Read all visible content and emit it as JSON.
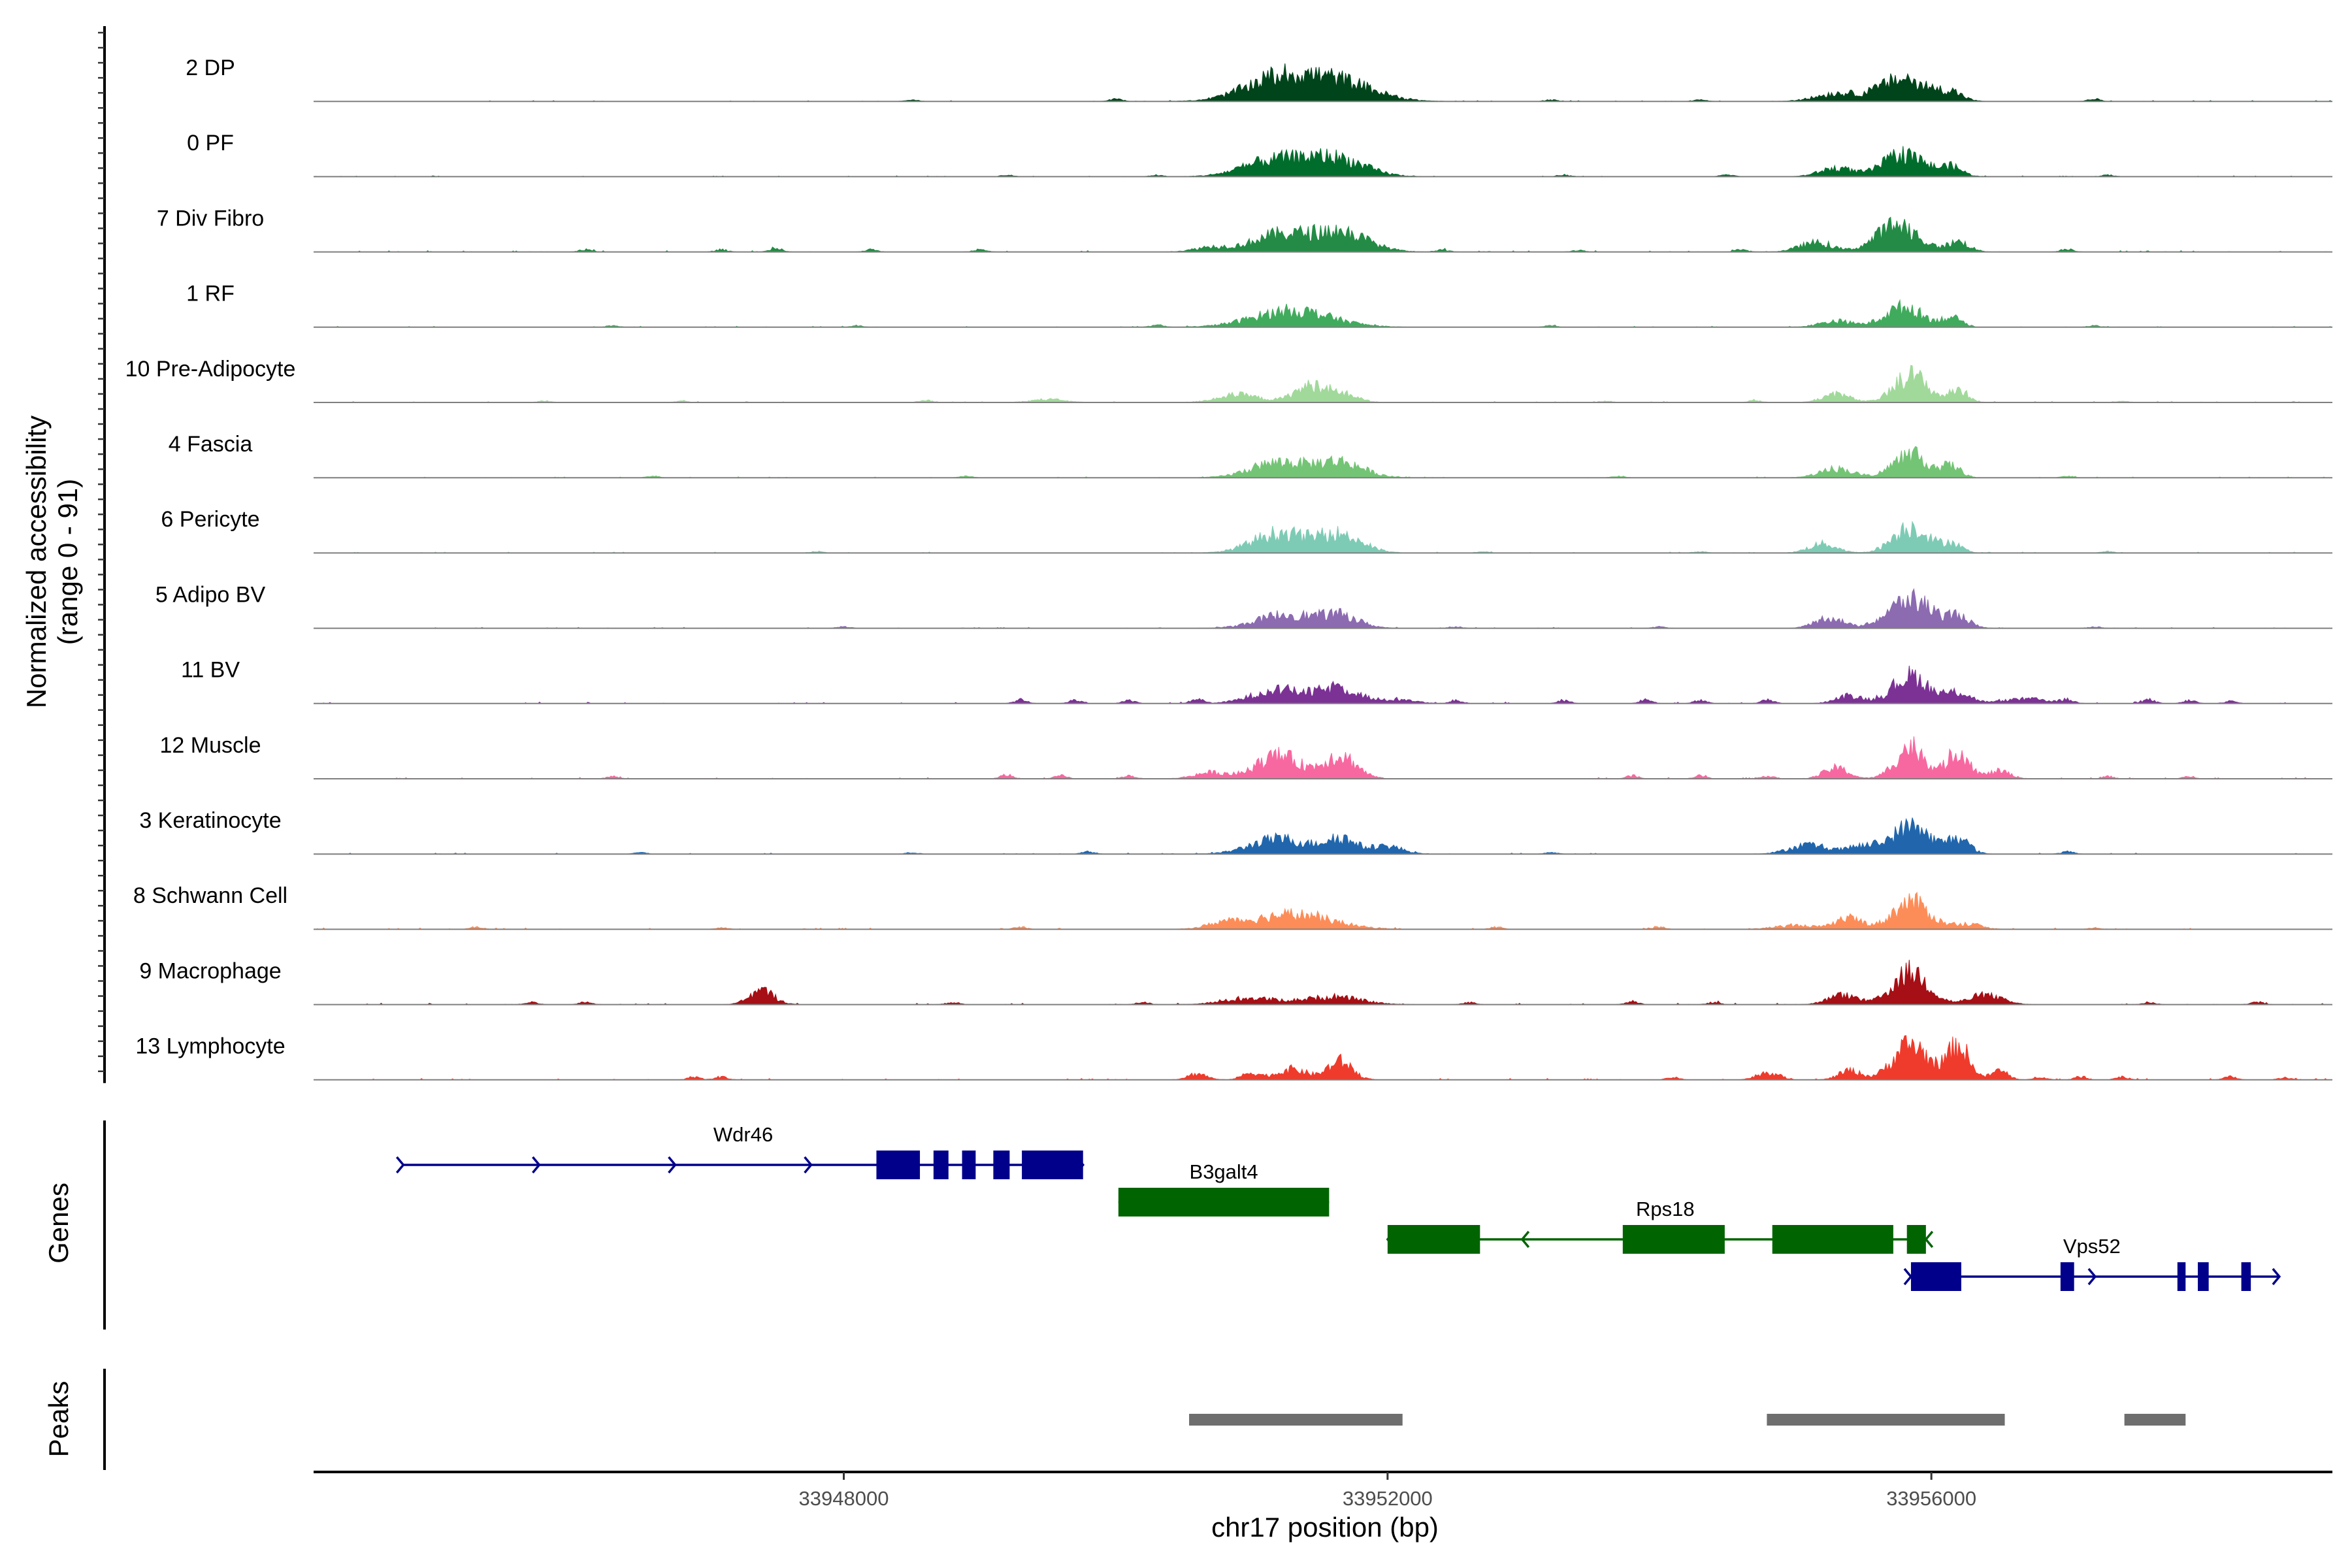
{
  "chart_data": {
    "type": "area",
    "title": "",
    "ylabel": "Normalized accessibility",
    "ylabel_range": "(range 0 - 91)",
    "ylim": [
      0,
      91
    ],
    "xlabel": "chr17 position (bp)",
    "xlim": [
      33944100,
      33958950
    ],
    "xticks": [
      33948000,
      33952000,
      33956000
    ],
    "tick_labels": [
      "33948000",
      "33952000",
      "33956000"
    ],
    "tracks": [
      {
        "name": "2 DP",
        "color": "#00441b",
        "peaks": [
          [
            33951200,
            30,
            250
          ],
          [
            33951650,
            24,
            250
          ],
          [
            33955300,
            10,
            150
          ],
          [
            33955800,
            30,
            180
          ],
          [
            33956150,
            10,
            80
          ]
        ],
        "blips": [
          [
            33948500,
            2
          ],
          [
            33950000,
            3
          ],
          [
            33953200,
            2
          ],
          [
            33954300,
            2
          ],
          [
            33957200,
            3
          ]
        ],
        "noise": 1.2
      },
      {
        "name": "0 PF",
        "color": "#006d2c",
        "peaks": [
          [
            33951150,
            20,
            220
          ],
          [
            33951600,
            24,
            220
          ],
          [
            33955300,
            11,
            120
          ],
          [
            33955800,
            30,
            150
          ],
          [
            33956150,
            12,
            80
          ]
        ],
        "blips": [
          [
            33949200,
            2
          ],
          [
            33950300,
            2
          ],
          [
            33953300,
            2
          ],
          [
            33954500,
            3
          ],
          [
            33957300,
            2
          ]
        ],
        "noise": 1.2
      },
      {
        "name": "7 Div Fibro",
        "color": "#238b45",
        "peaks": [
          [
            33950700,
            6,
            120
          ],
          [
            33951200,
            22,
            200
          ],
          [
            33951650,
            26,
            200
          ],
          [
            33955150,
            12,
            120
          ],
          [
            33955750,
            36,
            150
          ],
          [
            33956200,
            13,
            80
          ]
        ],
        "blips": [
          [
            33946100,
            3
          ],
          [
            33947100,
            3
          ],
          [
            33947500,
            4
          ],
          [
            33948200,
            3
          ],
          [
            33949000,
            3
          ],
          [
            33952400,
            3
          ],
          [
            33953400,
            2
          ],
          [
            33954600,
            3
          ],
          [
            33957000,
            4
          ]
        ],
        "noise": 1.8
      },
      {
        "name": "1 RF",
        "color": "#41ab5d",
        "peaks": [
          [
            33951300,
            22,
            280
          ],
          [
            33955300,
            8,
            120
          ],
          [
            33955800,
            26,
            140
          ],
          [
            33956150,
            12,
            70
          ]
        ],
        "blips": [
          [
            33946300,
            2
          ],
          [
            33948100,
            2
          ],
          [
            33950300,
            3
          ],
          [
            33953200,
            2
          ],
          [
            33957200,
            2
          ]
        ],
        "noise": 1.3
      },
      {
        "name": "10 Pre-Adipocyte",
        "color": "#a1d99b",
        "peaks": [
          [
            33949500,
            4,
            120
          ],
          [
            33950900,
            10,
            150
          ],
          [
            33951450,
            22,
            130
          ],
          [
            33951700,
            8,
            100
          ],
          [
            33955300,
            11,
            100
          ],
          [
            33955850,
            36,
            120
          ],
          [
            33956200,
            16,
            70
          ]
        ],
        "blips": [
          [
            33945800,
            2
          ],
          [
            33946800,
            2
          ],
          [
            33948600,
            3
          ],
          [
            33953600,
            2
          ],
          [
            33954700,
            3
          ],
          [
            33957400,
            2
          ]
        ],
        "noise": 1.6
      },
      {
        "name": "4 Fascia",
        "color": "#74c476",
        "peaks": [
          [
            33951200,
            20,
            200
          ],
          [
            33951650,
            20,
            170
          ],
          [
            33955300,
            12,
            120
          ],
          [
            33955850,
            30,
            130
          ],
          [
            33956150,
            14,
            70
          ]
        ],
        "blips": [
          [
            33946600,
            2
          ],
          [
            33948900,
            2
          ],
          [
            33953700,
            2
          ],
          [
            33957000,
            2
          ]
        ],
        "noise": 1.3
      },
      {
        "name": "6 Pericyte",
        "color": "#7ecbb5",
        "peaks": [
          [
            33951200,
            26,
            190
          ],
          [
            33951650,
            24,
            160
          ],
          [
            33955200,
            12,
            100
          ],
          [
            33955850,
            34,
            130
          ],
          [
            33956150,
            12,
            70
          ]
        ],
        "blips": [
          [
            33947800,
            2
          ],
          [
            33952700,
            2
          ],
          [
            33954300,
            2
          ],
          [
            33957300,
            2
          ]
        ],
        "noise": 1.3
      },
      {
        "name": "5 Adipo BV",
        "color": "#8c6bb1",
        "peaks": [
          [
            33951250,
            18,
            200
          ],
          [
            33951650,
            16,
            140
          ],
          [
            33955250,
            14,
            100
          ],
          [
            33955850,
            38,
            160
          ],
          [
            33956200,
            14,
            80
          ]
        ],
        "blips": [
          [
            33948000,
            2
          ],
          [
            33952500,
            2
          ],
          [
            33954000,
            2
          ],
          [
            33957200,
            2
          ]
        ],
        "noise": 1.2
      },
      {
        "name": "11 BV",
        "color": "#7b3294",
        "peaks": [
          [
            33951200,
            18,
            190
          ],
          [
            33951650,
            20,
            150
          ],
          [
            33952100,
            5,
            110
          ],
          [
            33955400,
            10,
            100
          ],
          [
            33955850,
            36,
            130
          ],
          [
            33956200,
            14,
            90
          ],
          [
            33956700,
            6,
            170
          ]
        ],
        "blips": [
          [
            33949300,
            5
          ],
          [
            33949700,
            4
          ],
          [
            33950100,
            4
          ],
          [
            33950600,
            6
          ],
          [
            33952500,
            4
          ],
          [
            33953300,
            4
          ],
          [
            33953900,
            5
          ],
          [
            33954300,
            4
          ],
          [
            33954800,
            5
          ],
          [
            33957000,
            4
          ],
          [
            33957600,
            5
          ],
          [
            33957900,
            4
          ],
          [
            33958200,
            3
          ]
        ],
        "noise": 2.0
      },
      {
        "name": "12 Muscle",
        "color": "#f768a1",
        "peaks": [
          [
            33950700,
            8,
            120
          ],
          [
            33951200,
            30,
            160
          ],
          [
            33951650,
            30,
            120
          ],
          [
            33955300,
            14,
            90
          ],
          [
            33955850,
            42,
            110
          ],
          [
            33956200,
            36,
            80
          ],
          [
            33956500,
            10,
            80
          ]
        ],
        "blips": [
          [
            33946300,
            3
          ],
          [
            33949200,
            5
          ],
          [
            33949600,
            4
          ],
          [
            33950100,
            4
          ],
          [
            33953800,
            4
          ],
          [
            33954300,
            4
          ],
          [
            33954800,
            4
          ],
          [
            33957300,
            3
          ],
          [
            33957900,
            3
          ]
        ],
        "noise": 1.8
      },
      {
        "name": "3 Keratinocyte",
        "color": "#2166ac",
        "peaks": [
          [
            33951200,
            20,
            200
          ],
          [
            33951650,
            20,
            120
          ],
          [
            33952000,
            10,
            110
          ],
          [
            33955100,
            12,
            140
          ],
          [
            33955500,
            10,
            110
          ],
          [
            33955850,
            36,
            140
          ],
          [
            33956200,
            20,
            80
          ]
        ],
        "blips": [
          [
            33946500,
            2
          ],
          [
            33948500,
            2
          ],
          [
            33949800,
            3
          ],
          [
            33953200,
            2
          ],
          [
            33957000,
            3
          ]
        ],
        "noise": 1.4
      },
      {
        "name": "8 Schwann Cell",
        "color": "#fc8d59",
        "peaks": [
          [
            33950800,
            7,
            120
          ],
          [
            33951300,
            20,
            280
          ],
          [
            33955000,
            5,
            150
          ],
          [
            33955400,
            14,
            100
          ],
          [
            33955850,
            36,
            130
          ],
          [
            33956250,
            7,
            110
          ]
        ],
        "blips": [
          [
            33945300,
            3
          ],
          [
            33947100,
            2
          ],
          [
            33949300,
            3
          ],
          [
            33952800,
            3
          ],
          [
            33954000,
            3
          ],
          [
            33957200,
            2
          ]
        ],
        "noise": 1.8
      },
      {
        "name": "9 Macrophage",
        "color": "#a50f15",
        "peaks": [
          [
            33947400,
            18,
            90
          ],
          [
            33951000,
            8,
            200
          ],
          [
            33951600,
            10,
            200
          ],
          [
            33955350,
            12,
            110
          ],
          [
            33955850,
            42,
            130
          ],
          [
            33956400,
            12,
            120
          ]
        ],
        "blips": [
          [
            33945700,
            3
          ],
          [
            33946100,
            3
          ],
          [
            33948800,
            3
          ],
          [
            33950200,
            3
          ],
          [
            33952600,
            3
          ],
          [
            33953800,
            4
          ],
          [
            33954400,
            3
          ],
          [
            33957600,
            3
          ],
          [
            33958400,
            3
          ]
        ],
        "noise": 2.0
      },
      {
        "name": "13 Lymphocyte",
        "color": "#ef3b2c",
        "peaks": [
          [
            33950600,
            8,
            70
          ],
          [
            33951000,
            9,
            70
          ],
          [
            33951300,
            14,
            110
          ],
          [
            33951650,
            24,
            90
          ],
          [
            33954800,
            10,
            80
          ],
          [
            33955400,
            12,
            80
          ],
          [
            33955850,
            46,
            130
          ],
          [
            33956200,
            44,
            80
          ],
          [
            33956500,
            12,
            60
          ]
        ],
        "blips": [
          [
            33946900,
            4
          ],
          [
            33947100,
            4
          ],
          [
            33954100,
            3
          ],
          [
            33956800,
            4
          ],
          [
            33957100,
            4
          ],
          [
            33957400,
            4
          ],
          [
            33958200,
            4
          ],
          [
            33958600,
            3
          ]
        ],
        "noise": 1.8
      }
    ],
    "genes": [
      {
        "name": "Wdr46",
        "strand": "+",
        "color": "#00008b",
        "row": 2,
        "start": 33944760,
        "end": 33949760,
        "exons": [
          [
            33948240,
            33948560
          ],
          [
            33948660,
            33948770
          ],
          [
            33948870,
            33948970
          ],
          [
            33949100,
            33949220
          ],
          [
            33949310,
            33949760
          ]
        ]
      },
      {
        "name": "B3galt4",
        "color": "#006400",
        "row": 1,
        "start": 33950020,
        "end": 33951570,
        "exons": [
          [
            33950020,
            33951570
          ]
        ]
      },
      {
        "name": "Rps18",
        "strand": "-",
        "color": "#006400",
        "row": 0,
        "start": 33952000,
        "end": 33955960,
        "exons": [
          [
            33952000,
            33952680
          ],
          [
            33953730,
            33954480
          ],
          [
            33954830,
            33955720
          ],
          [
            33955820,
            33955960
          ]
        ]
      },
      {
        "name": "Vps52",
        "strand": "+",
        "color": "#00008b",
        "row": -1,
        "start": 33955850,
        "end": 33958560,
        "exons": [
          [
            33955850,
            33956220
          ],
          [
            33956950,
            33957050
          ],
          [
            33957810,
            33957870
          ],
          [
            33957960,
            33958040
          ],
          [
            33958280,
            33958350
          ]
        ]
      }
    ],
    "peak_regions": [
      [
        33950540,
        33952110
      ],
      [
        33954790,
        33956540
      ],
      [
        33957420,
        33957870
      ]
    ],
    "gene_track_label": "Genes",
    "peak_track_label": "Peaks",
    "peak_color": "#6e6e6e"
  }
}
